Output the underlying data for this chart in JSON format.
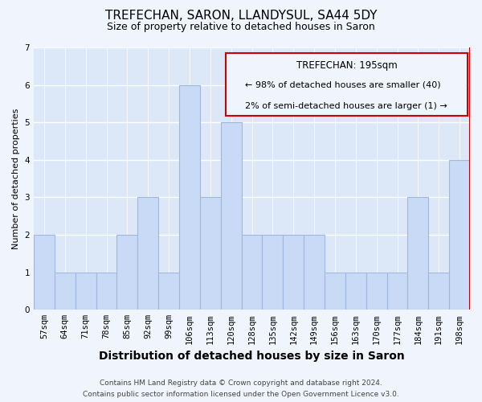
{
  "title": "TREFECHAN, SARON, LLANDYSUL, SA44 5DY",
  "subtitle": "Size of property relative to detached houses in Saron",
  "xlabel": "Distribution of detached houses by size in Saron",
  "ylabel": "Number of detached properties",
  "categories": [
    "57sqm",
    "64sqm",
    "71sqm",
    "78sqm",
    "85sqm",
    "92sqm",
    "99sqm",
    "106sqm",
    "113sqm",
    "120sqm",
    "128sqm",
    "135sqm",
    "142sqm",
    "149sqm",
    "156sqm",
    "163sqm",
    "170sqm",
    "177sqm",
    "184sqm",
    "191sqm",
    "198sqm"
  ],
  "values": [
    2,
    1,
    1,
    1,
    2,
    3,
    1,
    6,
    3,
    5,
    2,
    2,
    2,
    2,
    1,
    1,
    1,
    1,
    3,
    1,
    4
  ],
  "bar_color": "#c8daf5",
  "bar_edge_color": "#a0b8e0",
  "highlight_index": 20,
  "highlight_edge_color": "#cc0000",
  "ylim": [
    0,
    7
  ],
  "yticks": [
    0,
    1,
    2,
    3,
    4,
    5,
    6,
    7
  ],
  "annotation_title": "TREFECHAN: 195sqm",
  "annotation_line1": "← 98% of detached houses are smaller (40)",
  "annotation_line2": "2% of semi-detached houses are larger (1) →",
  "annotation_box_edge": "#cc0000",
  "footnote1": "Contains HM Land Registry data © Crown copyright and database right 2024.",
  "footnote2": "Contains public sector information licensed under the Open Government Licence v3.0.",
  "background_color": "#f0f4fc",
  "plot_bg_color": "#dce8f8",
  "grid_color": "#ffffff",
  "title_fontsize": 11,
  "subtitle_fontsize": 9,
  "xlabel_fontsize": 10,
  "ylabel_fontsize": 8,
  "tick_fontsize": 7.5,
  "annotation_fontsize": 8,
  "footnote_fontsize": 6.5
}
